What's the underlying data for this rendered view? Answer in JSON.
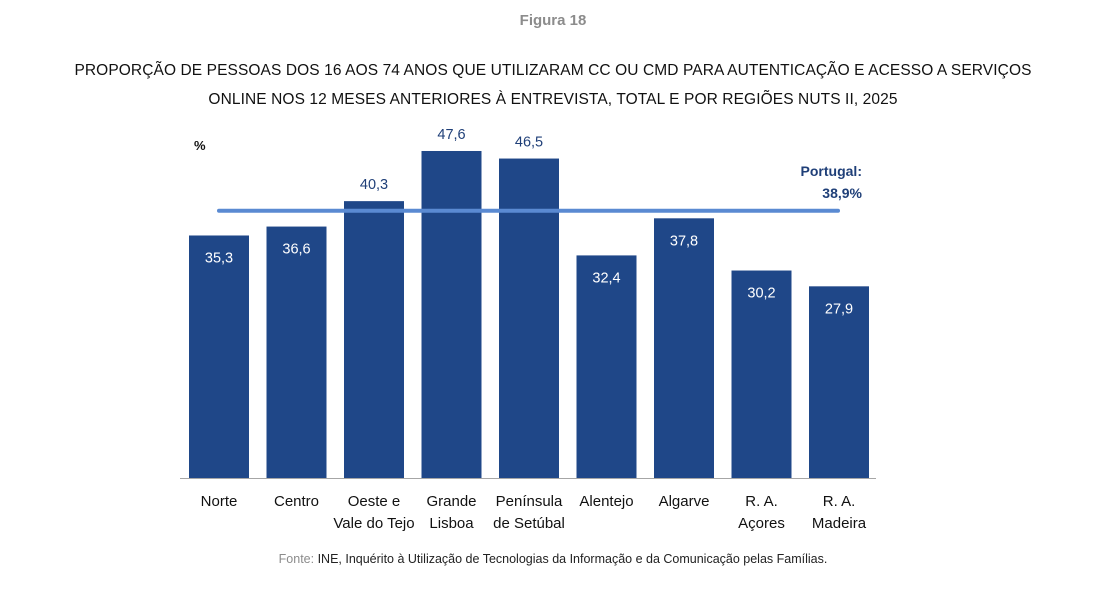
{
  "figure_label": "Figura 18",
  "source": {
    "label": "Fonte:",
    "text": " INE, Inquérito à Utilização de Tecnologias da Informação e da Comunicação pelas Famílias."
  },
  "chart_data": {
    "type": "bar",
    "title_lines": [
      "PROPORÇÃO DE PESSOAS DOS 16 AOS 74 ANOS QUE UTILIZARAM CC OU CMD PARA AUTENTICAÇÃO E ACESSO A SERVIÇOS",
      "ONLINE NOS 12 MESES ANTERIORES À ENTREVISTA, TOTAL E POR REGIÕES NUTS II, 2025"
    ],
    "ylabel": "%",
    "ylim": [
      0,
      50
    ],
    "grid": false,
    "categories": [
      [
        "Norte"
      ],
      [
        "Centro"
      ],
      [
        "Oeste e",
        "Vale do Tejo"
      ],
      [
        "Grande",
        "Lisboa"
      ],
      [
        "Península",
        "de Setúbal"
      ],
      [
        "Alentejo"
      ],
      [
        "Algarve"
      ],
      [
        "R. A.",
        "Açores"
      ],
      [
        "R. A.",
        "Madeira"
      ]
    ],
    "values": [
      35.3,
      36.6,
      40.3,
      47.6,
      46.5,
      32.4,
      37.8,
      30.2,
      27.9
    ],
    "value_labels": [
      "35,3",
      "36,6",
      "40,3",
      "47,6",
      "46,5",
      "32,4",
      "37,8",
      "30,2",
      "27,9"
    ],
    "reference": {
      "name": "Portugal:",
      "value": 38.9,
      "label": "38,9%"
    },
    "colors": {
      "bar": "#1f4788",
      "reference": "#5a8ad2",
      "label_dark": "#1f3f78"
    }
  }
}
